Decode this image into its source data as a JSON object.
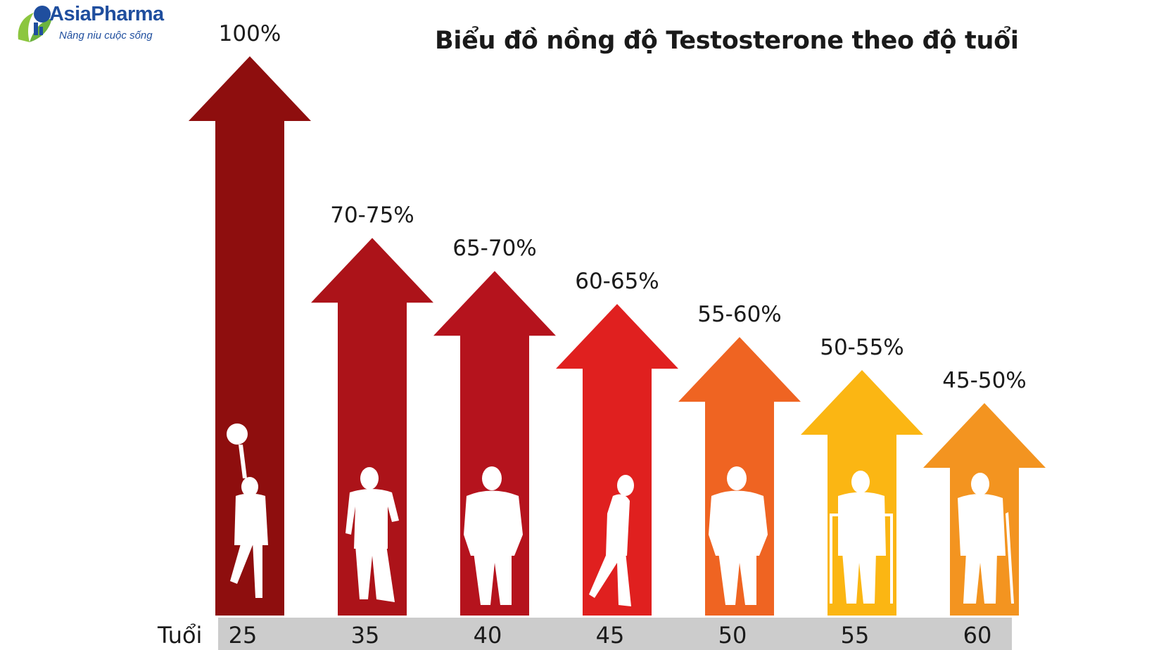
{
  "logo": {
    "name": "AsiaPharma",
    "tagline": "Nâng niu cuộc sống",
    "colors": {
      "primary": "#1f4e9e",
      "leaf": "#8cc63f"
    }
  },
  "chart_data": {
    "type": "bar",
    "title": "Biểu đồ nồng độ Testosterone theo độ tuổi",
    "xlabel": "Tuổi",
    "ylabel": "",
    "categories": [
      "25",
      "35",
      "40",
      "45",
      "50",
      "55",
      "60"
    ],
    "labels": [
      "100%",
      "70-75%",
      "65-70%",
      "60-65%",
      "55-60%",
      "50-55%",
      "45-50%"
    ],
    "values": [
      100,
      72.5,
      67.5,
      62.5,
      57.5,
      52.5,
      47.5
    ],
    "colors": [
      "#8e0e0e",
      "#ac1319",
      "#b5131d",
      "#e0201f",
      "#ef6422",
      "#fbb613",
      "#f39420"
    ],
    "figures": [
      "basketball-player",
      "standing-man",
      "heavyset-man",
      "stooped-man",
      "heavyset-man",
      "elderly-with-walker",
      "elderly-with-cane"
    ],
    "axis_band_color": "#cccccc"
  }
}
